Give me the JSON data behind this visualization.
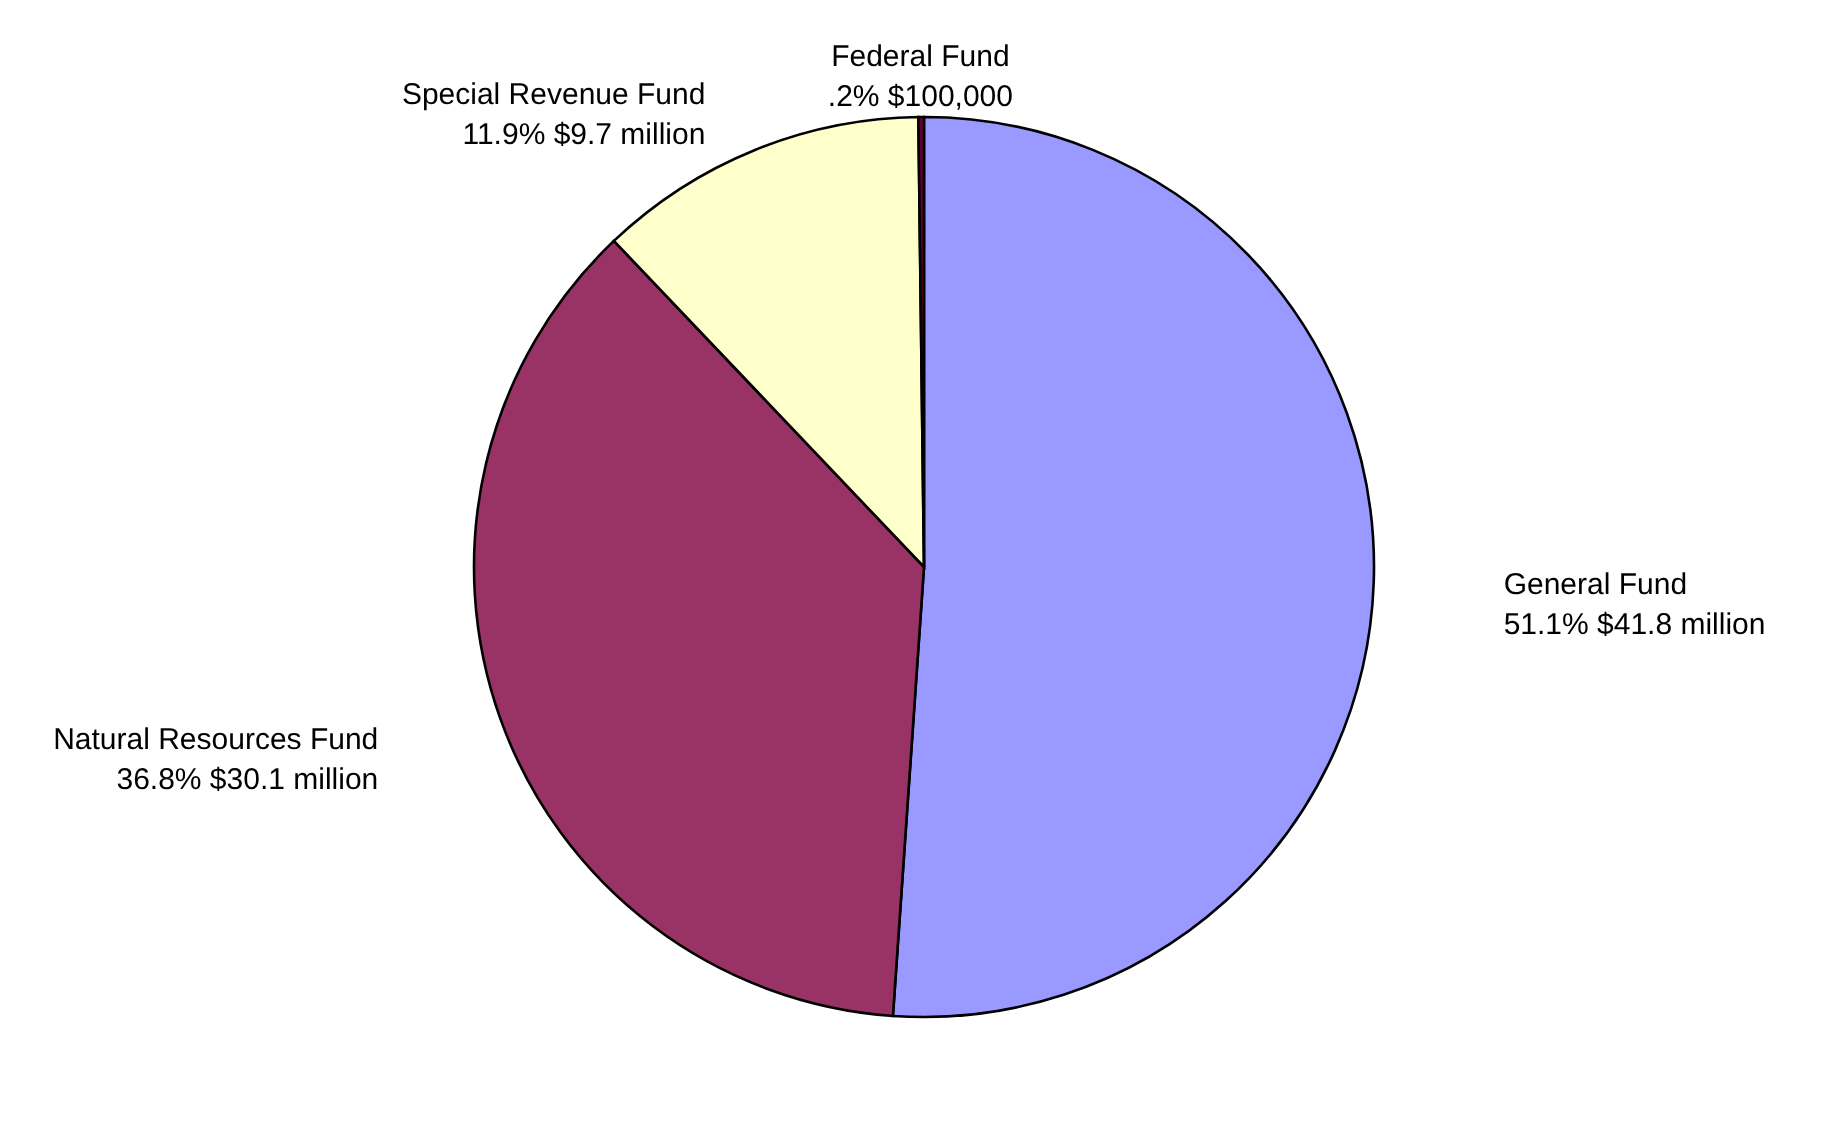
{
  "chart_data": {
    "type": "pie",
    "categories": [
      "General Fund",
      "Natural Resources Fund",
      "Special Revenue Fund",
      "Federal Fund"
    ],
    "values": [
      51.1,
      36.8,
      11.9,
      0.2
    ],
    "value_labels": [
      "51.1% $41.8 million",
      "36.8%  $30.1 million",
      "11.9% $9.7 million",
      ".2% $100,000"
    ],
    "colors": [
      "#9999ff",
      "#993366",
      "#ffffcc",
      "#660033"
    ],
    "legend": false
  }
}
